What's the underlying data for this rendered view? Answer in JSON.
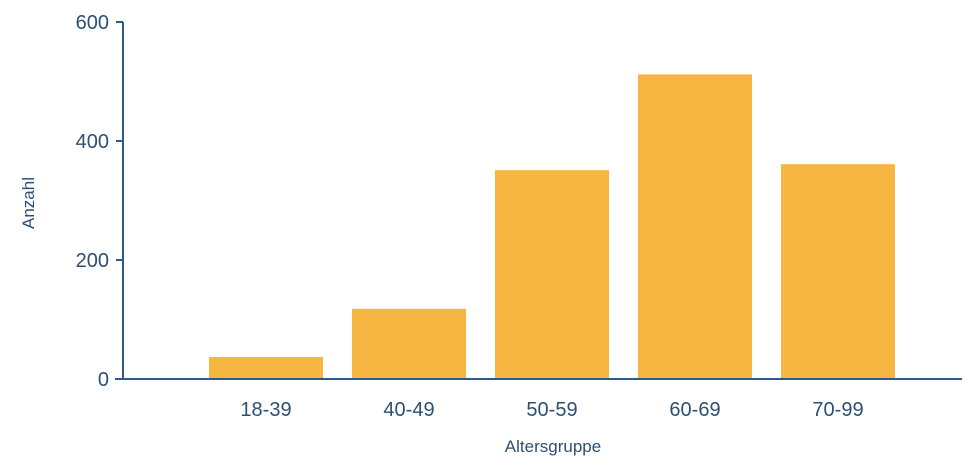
{
  "chart_data": {
    "type": "bar",
    "title": "",
    "xlabel": "Altersgruppe",
    "ylabel": "Anzahl",
    "categories": [
      "18-39",
      "40-49",
      "50-59",
      "60-69",
      "70-99"
    ],
    "values": [
      37,
      118,
      351,
      512,
      361
    ],
    "ylim": [
      0,
      600
    ],
    "yticks": [
      0,
      200,
      400,
      600
    ],
    "grid": false,
    "legend": "none",
    "bar_color": "#F7B541",
    "axis_color": "#2D5C8A",
    "text_color": "#2D4F73"
  }
}
